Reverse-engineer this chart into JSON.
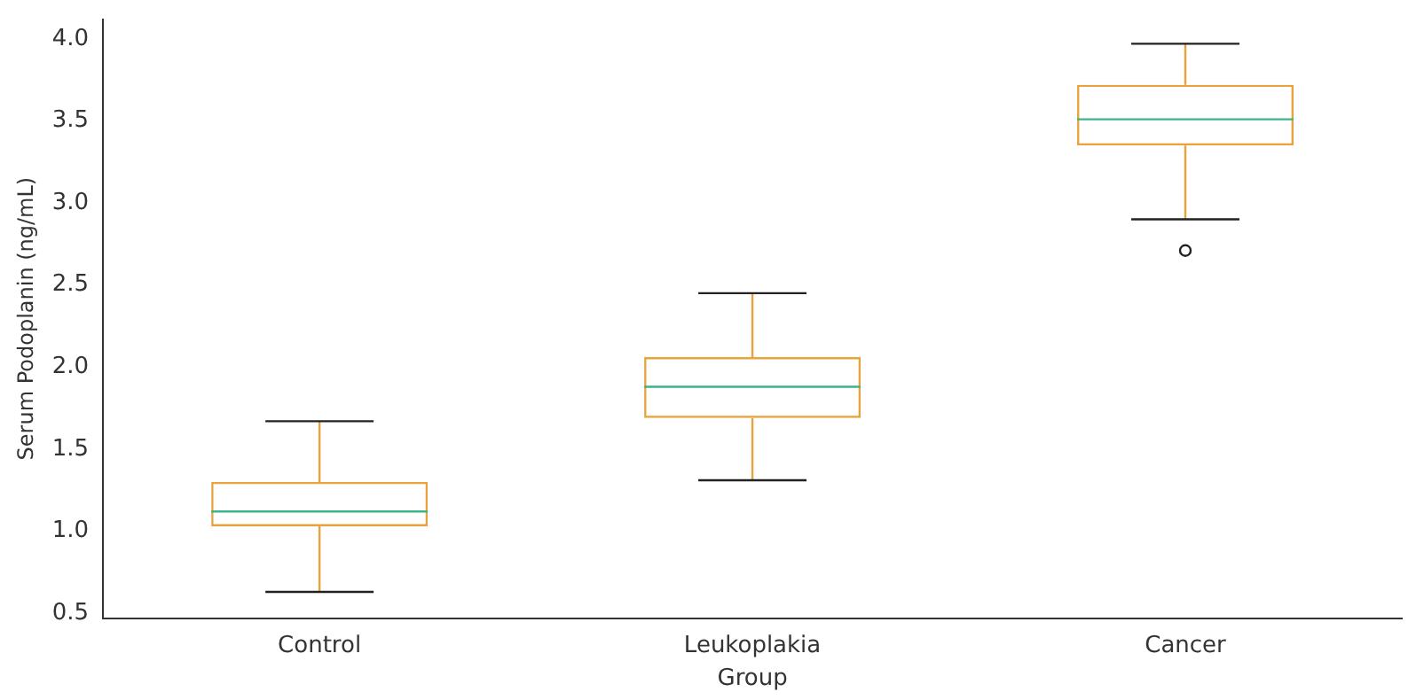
{
  "chart_data": {
    "type": "box",
    "xlabel": "Group",
    "ylabel": "Serum Podoplanin (ng/mL)",
    "categories": [
      "Control",
      "Leukoplakia",
      "Cancer"
    ],
    "boxes": [
      {
        "low": 0.63,
        "q1": 1.03,
        "median": 1.12,
        "q3": 1.3,
        "high": 1.67
      },
      {
        "low": 1.31,
        "q1": 1.69,
        "median": 1.88,
        "q3": 2.06,
        "high": 2.45
      },
      {
        "low": 2.9,
        "q1": 3.35,
        "median": 3.51,
        "q3": 3.72,
        "high": 3.97,
        "outliers": [
          2.71
        ]
      }
    ],
    "color": "#e8a33d",
    "ylim": [
      0.47,
      4.12
    ],
    "yticks": [
      0.5,
      {
        "value": 1,
        "label": "1.0"
      },
      1.5,
      {
        "value": 2,
        "label": "2.0"
      },
      2.5,
      {
        "value": 3,
        "label": "3.0"
      },
      3.5,
      {
        "value": 4,
        "label": "4.0"
      }
    ],
    "grid": false,
    "legend": false
  }
}
